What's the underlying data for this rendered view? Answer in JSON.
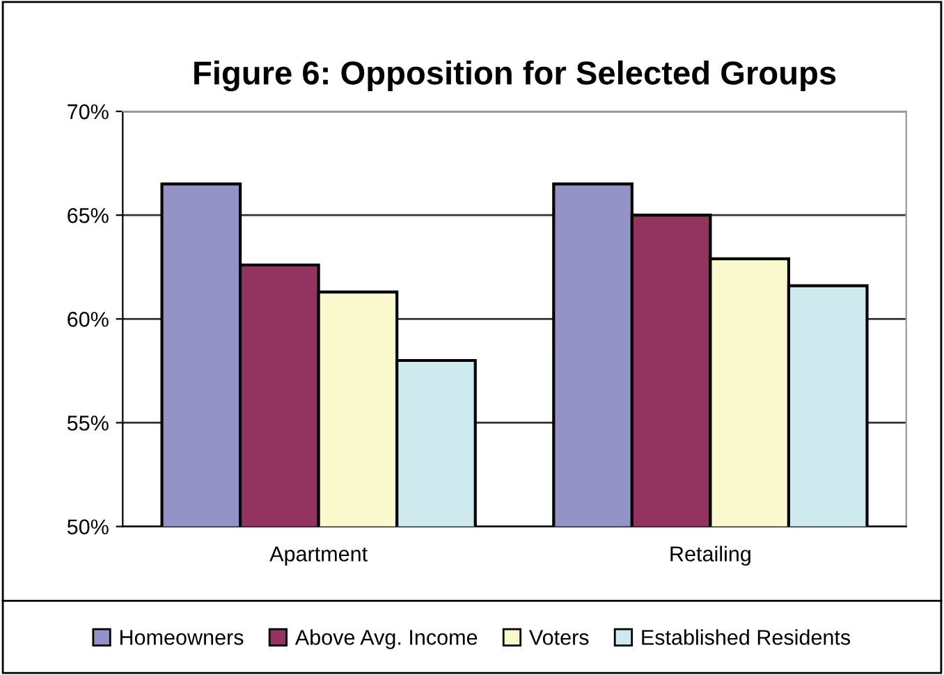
{
  "chart_data": {
    "type": "bar",
    "title": "Figure 6: Opposition for Selected Groups",
    "categories": [
      "Apartment",
      "Retailing"
    ],
    "series": [
      {
        "name": "Homeowners",
        "color": "#9393c8",
        "values": [
          66.5,
          66.5
        ]
      },
      {
        "name": "Above Avg. Income",
        "color": "#933360",
        "values": [
          62.6,
          65.0
        ]
      },
      {
        "name": "Voters",
        "color": "#faf8cd",
        "values": [
          61.3,
          62.9
        ]
      },
      {
        "name": "Established Residents",
        "color": "#cfeaef",
        "values": [
          58.0,
          61.6
        ]
      }
    ],
    "ylim": [
      50,
      70
    ],
    "yticks": [
      {
        "value": 50,
        "label": "50%"
      },
      {
        "value": 55,
        "label": "55%"
      },
      {
        "value": 60,
        "label": "60%"
      },
      {
        "value": 65,
        "label": "65%"
      },
      {
        "value": 70,
        "label": "70%"
      }
    ],
    "grid": "y",
    "legend": "bottom"
  }
}
